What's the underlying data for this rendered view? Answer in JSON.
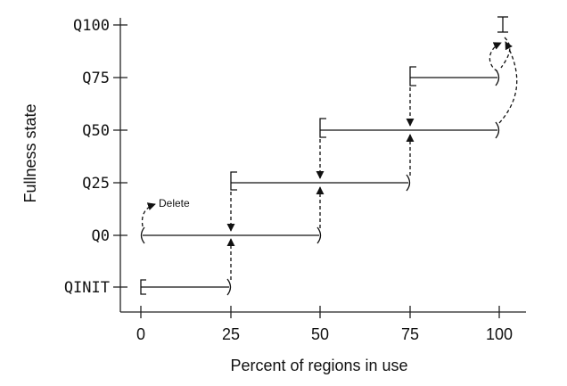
{
  "axes": {
    "x_title": "Percent of regions in use",
    "y_title": "Fullness state",
    "x_ticks": [
      "0",
      "25",
      "50",
      "75",
      "100"
    ],
    "y_ticks": [
      "Q100",
      "Q75",
      "Q50",
      "Q25",
      "Q0",
      "QINIT"
    ]
  },
  "annotation": {
    "delete_label": "Delete"
  },
  "states": [
    {
      "name": "QINIT",
      "lower": 0,
      "upper": 25
    },
    {
      "name": "Q0",
      "lower": 0,
      "upper": 50
    },
    {
      "name": "Q25",
      "lower": 25,
      "upper": 75
    },
    {
      "name": "Q50",
      "lower": 50,
      "upper": 100
    },
    {
      "name": "Q75",
      "lower": 75,
      "upper": 100
    },
    {
      "name": "Q100",
      "lower": 100,
      "upper": 100
    }
  ],
  "transitions": [
    {
      "from": "QINIT",
      "to": "Q0",
      "at": 25
    },
    {
      "from": "Q0",
      "to": "Q25",
      "at": 50
    },
    {
      "from": "Q25",
      "to": "Q0",
      "at": 25
    },
    {
      "from": "Q25",
      "to": "Q50",
      "at": 75
    },
    {
      "from": "Q50",
      "to": "Q25",
      "at": 50
    },
    {
      "from": "Q50",
      "to": "Q100",
      "at": 100
    },
    {
      "from": "Q75",
      "to": "Q50",
      "at": 75
    },
    {
      "from": "Q75",
      "to": "Q100",
      "at": 100
    }
  ]
}
